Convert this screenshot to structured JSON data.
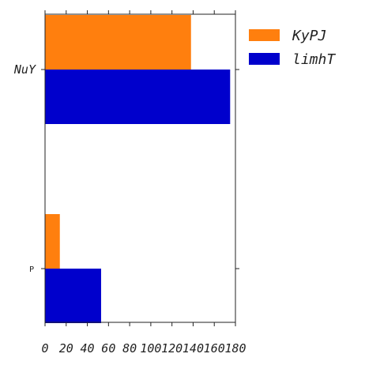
{
  "chart_data": {
    "type": "bar",
    "orientation": "horizontal",
    "categories": [
      "NuY",
      "P"
    ],
    "series": [
      {
        "name": "KyPJ",
        "color": "#ff7f0e",
        "values": [
          138,
          14
        ]
      },
      {
        "name": "limhT",
        "color": "#0000cc",
        "values": [
          175,
          53
        ]
      }
    ],
    "xlim": [
      0,
      180
    ],
    "xticks": [
      0,
      20,
      40,
      60,
      80,
      100,
      120,
      140,
      160,
      180
    ],
    "legend": "top-right-outside",
    "grid": false
  }
}
